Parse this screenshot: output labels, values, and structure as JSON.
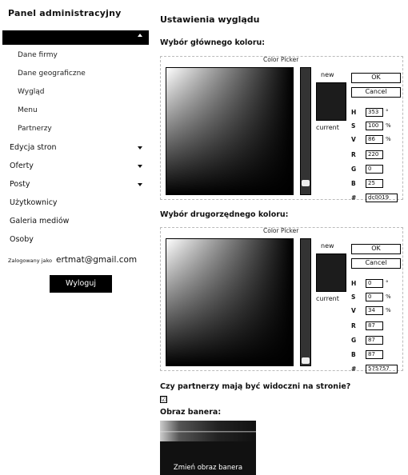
{
  "sidebar": {
    "title": "Panel administracyjny",
    "active_section": "",
    "sub_items": [
      "Dane firmy",
      "Dane geograficzne",
      "Wygląd",
      "Menu",
      "Partnerzy"
    ],
    "items": [
      "Edycja stron",
      "Oferty",
      "Posty",
      "Użytkownicy",
      "Galeria mediów",
      "Osoby"
    ],
    "logged_prefix": "Zalogowany jako",
    "logged_email": "ertmat@gmail.com",
    "logout_label": "Wyloguj"
  },
  "main": {
    "title": "Ustawienia wyglądu",
    "primary_label": "Wybór głównego koloru:",
    "secondary_label": "Wybór drugorzędnego koloru:",
    "partners_question": "Czy partnerzy mają być widoczni na stronie?",
    "partners_checked": "☑",
    "banner_label": "Obraz banera:",
    "banner_button": "Zmień obraz banera"
  },
  "picker_common": {
    "title": "Color Picker",
    "new_label": "new",
    "current_label": "current",
    "ok_label": "OK",
    "cancel_label": "Cancel"
  },
  "picker1": {
    "h": "353",
    "s": "100",
    "v": "86",
    "r": "220",
    "g": "0",
    "b": "25",
    "hex": "dc0019",
    "swatch_color": "#1c1c1c"
  },
  "picker2": {
    "h": "0",
    "s": "0",
    "v": "34",
    "r": "87",
    "g": "87",
    "b": "87",
    "hex": "575757",
    "swatch_color": "#1c1c1c"
  }
}
